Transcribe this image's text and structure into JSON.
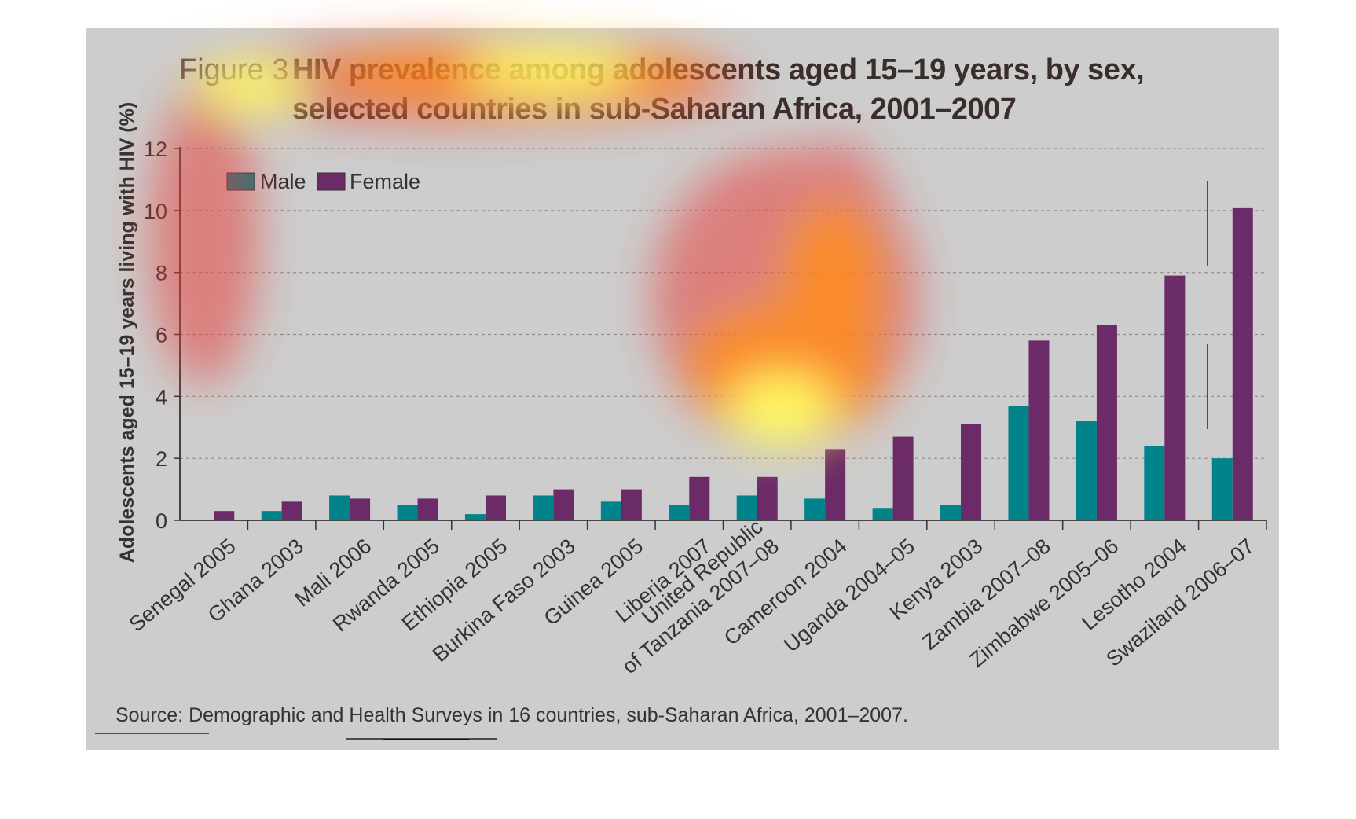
{
  "figure_label": "Figure 3",
  "title_line1": "HIV prevalence among adolescents aged 15–19 years, by sex,",
  "title_line2": "selected countries in sub-Saharan Africa, 2001–2007",
  "source": "Source: Demographic and Health Surveys in 16 countries, sub-Saharan Africa, 2001–2007.",
  "colors": {
    "male": "#00838a",
    "female": "#6b2a68",
    "background": "#cdcdcd",
    "heat_core": "#ffff66",
    "heat_mid": "#ff8c1a",
    "heat_outer": "#e8403a"
  },
  "chart_data": {
    "type": "bar",
    "title": "HIV prevalence among adolescents aged 15–19 years, by sex, selected countries in sub-Saharan Africa, 2001–2007",
    "xlabel": "",
    "ylabel": "Adolescents aged 15–19 years living with HIV (%)",
    "ylim": [
      0,
      12
    ],
    "yticks": [
      "0",
      "2",
      "4",
      "6",
      "8",
      "10",
      "12"
    ],
    "grid": "horizontal dashed",
    "legend": "top-left",
    "categories": [
      [
        "Senegal 2005"
      ],
      [
        "Ghana 2003"
      ],
      [
        "Mali 2006"
      ],
      [
        "Rwanda 2005"
      ],
      [
        "Ethiopia 2005"
      ],
      [
        "Burkina Faso 2003"
      ],
      [
        "Guinea 2005"
      ],
      [
        "Liberia 2007"
      ],
      [
        "United Republic",
        "of Tanzania 2007–08"
      ],
      [
        "Cameroon 2004"
      ],
      [
        "Uganda 2004–05"
      ],
      [
        "Kenya 2003"
      ],
      [
        "Zambia 2007–08"
      ],
      [
        "Zimbabwe 2005–06"
      ],
      [
        "Lesotho 2004"
      ],
      [
        "Swaziland 2006–07"
      ]
    ],
    "series": [
      {
        "name": "Male",
        "values": [
          0,
          0.3,
          0.8,
          0.5,
          0.2,
          0.8,
          0.6,
          0.5,
          0.8,
          0.7,
          0.4,
          0.5,
          3.7,
          3.2,
          2.4,
          2.0
        ]
      },
      {
        "name": "Female",
        "values": [
          0.3,
          0.6,
          0.7,
          0.7,
          0.8,
          1.0,
          1.0,
          1.4,
          1.4,
          2.3,
          2.7,
          3.1,
          5.8,
          6.3,
          7.9,
          10.1
        ]
      }
    ]
  }
}
